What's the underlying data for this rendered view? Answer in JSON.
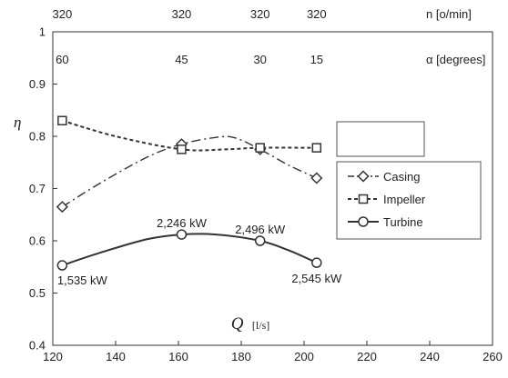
{
  "chart_data": {
    "type": "line",
    "title": "",
    "xlabel": "Q",
    "xlabel_unit": "[l/s]",
    "ylabel": "η",
    "xlim": [
      120,
      260
    ],
    "ylim": [
      0.4,
      1.0
    ],
    "x_ticks": [
      "120",
      "140",
      "160",
      "180",
      "200",
      "220",
      "240",
      "260"
    ],
    "y_ticks": [
      "0.4",
      "0.5",
      "0.6",
      "0.7",
      "0.8",
      "0.9",
      "1"
    ],
    "grid": false,
    "legend_position": "right",
    "top_rows": [
      {
        "label": "n [o/min]",
        "values": [
          "320",
          "320",
          "320",
          "320"
        ]
      },
      {
        "label": "α [degrees]",
        "values": [
          "60",
          "45",
          "30",
          "15"
        ]
      }
    ],
    "top_row_x": [
      123,
      161,
      186,
      204
    ],
    "series": [
      {
        "name": "Casing",
        "marker": "diamond",
        "line_style": "dash-dot",
        "x": [
          123,
          161,
          186,
          204
        ],
        "y": [
          0.665,
          0.785,
          0.775,
          0.72
        ],
        "curve_x": [
          123,
          135,
          150,
          161,
          172,
          178,
          186,
          195,
          204
        ],
        "curve_y": [
          0.665,
          0.71,
          0.76,
          0.785,
          0.798,
          0.797,
          0.775,
          0.745,
          0.72
        ]
      },
      {
        "name": "Impeller",
        "marker": "square",
        "line_style": "dashed",
        "x": [
          123,
          161,
          186,
          204
        ],
        "y": [
          0.83,
          0.775,
          0.778,
          0.778
        ],
        "curve_x": [
          123,
          140,
          161,
          175,
          186,
          204
        ],
        "curve_y": [
          0.83,
          0.8,
          0.775,
          0.775,
          0.778,
          0.778
        ]
      },
      {
        "name": "Turbine",
        "marker": "circle",
        "line_style": "solid",
        "x": [
          123,
          161,
          186,
          204
        ],
        "y": [
          0.553,
          0.612,
          0.6,
          0.558
        ],
        "curve_x": [
          123,
          135,
          150,
          161,
          172,
          186,
          195,
          204
        ],
        "curve_y": [
          0.553,
          0.577,
          0.603,
          0.612,
          0.612,
          0.6,
          0.582,
          0.558
        ]
      }
    ],
    "annotations": [
      {
        "text": "1,535 kW",
        "x": 123,
        "y": 0.553
      },
      {
        "text": "2,246 kW",
        "x": 161,
        "y": 0.612
      },
      {
        "text": "2,496 kW",
        "x": 186,
        "y": 0.6
      },
      {
        "text": "2,545 kW",
        "x": 204,
        "y": 0.558
      }
    ]
  }
}
